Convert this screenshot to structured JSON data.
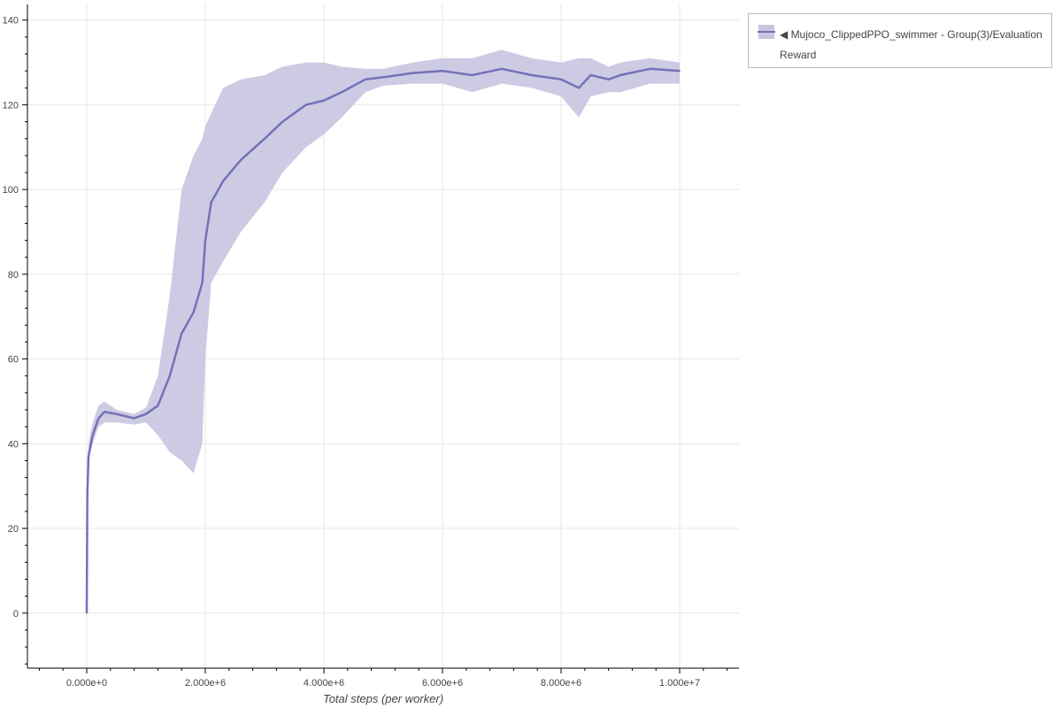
{
  "chart_data": {
    "type": "line",
    "title": "",
    "xlabel": "Total steps (per worker)",
    "ylabel": "",
    "xlim": [
      -1000000,
      11000000
    ],
    "ylim": [
      -13,
      143.7
    ],
    "grid": true,
    "legend_position": "outside-top-right",
    "x_ticks": [
      0,
      2000000,
      4000000,
      6000000,
      8000000,
      10000000
    ],
    "x_tick_labels": [
      "0.000e+0",
      "2.000e+6",
      "4.000e+6",
      "6.000e+6",
      "8.000e+6",
      "1.000e+7"
    ],
    "y_ticks": [
      0,
      20,
      40,
      60,
      80,
      100,
      120,
      140
    ],
    "y_tick_labels": [
      "0",
      "20",
      "40",
      "60",
      "80",
      "100",
      "120",
      "140"
    ],
    "colors": {
      "line": "#7670b8",
      "band": "#c8c5e0"
    },
    "series": [
      {
        "name": "◀ Mujoco_ClippedPPO_swimmer - Group(3)/Evaluation Reward",
        "x": [
          0,
          10000,
          30000,
          100000,
          200000,
          300000,
          500000,
          800000,
          1000000,
          1200000,
          1400000,
          1600000,
          1800000,
          1950000,
          2000000,
          2100000,
          2300000,
          2600000,
          3000000,
          3300000,
          3700000,
          4000000,
          4300000,
          4700000,
          5000000,
          5500000,
          6000000,
          6500000,
          7000000,
          7500000,
          8000000,
          8300000,
          8500000,
          8800000,
          9000000,
          9500000,
          10000000
        ],
        "mean": [
          0,
          28,
          37,
          42,
          46,
          47.5,
          47,
          46,
          47,
          49,
          56,
          66,
          71,
          78,
          88,
          97,
          102,
          107,
          112,
          116,
          120,
          121,
          123,
          126,
          126.5,
          127.5,
          128,
          127,
          128.5,
          127,
          126,
          124,
          127,
          126,
          127,
          128.5,
          128
        ],
        "lower": [
          0,
          27,
          36,
          40,
          44,
          45,
          45,
          44.5,
          45,
          42,
          38,
          36,
          33,
          40,
          60,
          78,
          83,
          90,
          97,
          104,
          110,
          113,
          117,
          123,
          124.5,
          125,
          125,
          123,
          125,
          124,
          122,
          117,
          122,
          123,
          123,
          125,
          125
        ],
        "upper": [
          0,
          29,
          40,
          45,
          49,
          50,
          48,
          47,
          48.5,
          56,
          75,
          100,
          108,
          112,
          115,
          118,
          124,
          126,
          127,
          129,
          130,
          130,
          129,
          128.5,
          128.5,
          130,
          131,
          131,
          133,
          131,
          130,
          131,
          131,
          129,
          130,
          131,
          130
        ]
      }
    ]
  }
}
